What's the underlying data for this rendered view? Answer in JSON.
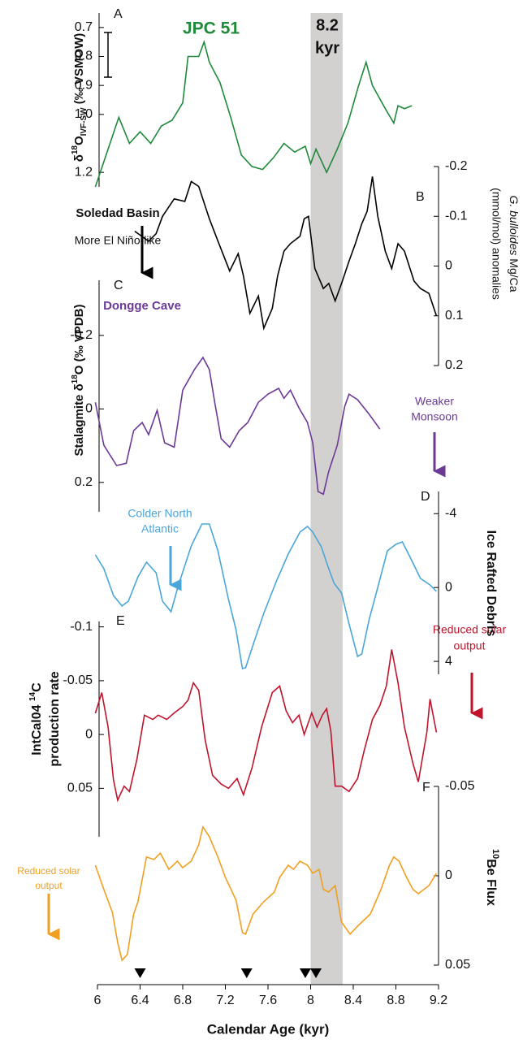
{
  "x_axis": {
    "x_label": "Calendar Age (kyr)",
    "xlim": [
      6,
      9.2
    ],
    "xticks": [
      6,
      6.4,
      6.8,
      7.2,
      7.6,
      8,
      8.4,
      8.8,
      9.2
    ],
    "band": {
      "xlim": [
        8.0,
        8.3
      ],
      "label": [
        "8.2",
        "kyr"
      ]
    }
  },
  "chart_data": [
    {
      "type": "line",
      "panel": "A",
      "title": "JPC 51",
      "y_label": [
        "δ",
        "18",
        "O",
        "IVF-SW",
        " (‰ VSMOW)"
      ],
      "y_axis_side": "left",
      "y_reversed": true,
      "ylim": [
        0.65,
        1.25
      ],
      "yticks": [
        0.7,
        0.8,
        0.9,
        {
          "value": 1.0,
          "label": "1.0"
        },
        1.2
      ],
      "color": "#1f8a3a",
      "x": [
        5.98,
        6.2,
        6.3,
        6.4,
        6.5,
        6.6,
        6.7,
        6.8,
        6.85,
        6.95,
        7.0,
        7.05,
        7.15,
        7.25,
        7.35,
        7.45,
        7.55,
        7.65,
        7.75,
        7.85,
        7.95,
        8.0,
        8.05,
        8.15,
        8.25,
        8.35,
        8.45,
        8.52,
        8.58,
        8.7,
        8.78,
        8.82,
        8.88,
        8.95
      ],
      "values": [
        1.25,
        1.01,
        1.1,
        1.06,
        1.1,
        1.04,
        1.02,
        0.96,
        0.8,
        0.8,
        0.75,
        0.82,
        0.89,
        1.01,
        1.14,
        1.18,
        1.19,
        1.15,
        1.1,
        1.13,
        1.11,
        1.17,
        1.12,
        1.2,
        1.12,
        1.03,
        0.9,
        0.82,
        0.9,
        0.98,
        1.03,
        0.97,
        0.98,
        0.97
      ]
    },
    {
      "type": "line",
      "panel": "B",
      "title": "Soledad Basin",
      "annotation": "More El Niño-like",
      "y_label": [
        "G. bulloides",
        " Mg/Ca",
        "(mmol/mol) anomalies"
      ],
      "y_axis_side": "right",
      "y_reversed": true,
      "ylim": [
        -0.2,
        0.2
      ],
      "yticks": [
        -0.2,
        -0.1,
        0,
        0.1,
        0.2
      ],
      "color": "#000000",
      "x": [
        6.35,
        6.48,
        6.55,
        6.61,
        6.72,
        6.82,
        6.88,
        6.95,
        7.05,
        7.14,
        7.24,
        7.32,
        7.37,
        7.43,
        7.51,
        7.56,
        7.64,
        7.69,
        7.75,
        7.81,
        7.9,
        7.94,
        7.98,
        8.04,
        8.12,
        8.17,
        8.23,
        8.29,
        8.36,
        8.42,
        8.48,
        8.53,
        8.58,
        8.63,
        8.7,
        8.76,
        8.82,
        8.88,
        8.97,
        9.03,
        9.11,
        9.18
      ],
      "values": [
        -0.07,
        -0.05,
        -0.065,
        -0.1,
        -0.135,
        -0.13,
        -0.17,
        -0.16,
        -0.095,
        -0.045,
        0.01,
        -0.025,
        0.02,
        0.095,
        0.06,
        0.125,
        0.085,
        0.02,
        -0.03,
        -0.045,
        -0.06,
        -0.095,
        -0.1,
        0.005,
        0.045,
        0.035,
        0.07,
        0.035,
        -0.01,
        -0.045,
        -0.085,
        -0.11,
        -0.18,
        -0.1,
        -0.03,
        0.005,
        -0.045,
        -0.03,
        0.03,
        0.045,
        0.055,
        0.1
      ]
    },
    {
      "type": "line",
      "panel": "C",
      "title": "Dongge Cave",
      "annotation": [
        "Weaker",
        "Monsoon"
      ],
      "y_label": [
        "Stalagmite δ",
        "18",
        "O (‰ VPDB)"
      ],
      "y_axis_side": "left",
      "y_reversed": true,
      "ylim": [
        -0.35,
        0.28
      ],
      "yticks": [
        -0.2,
        0,
        0.2
      ],
      "color": "#6b3a96",
      "x": [
        5.98,
        6.06,
        6.18,
        6.27,
        6.34,
        6.42,
        6.48,
        6.56,
        6.63,
        6.72,
        6.8,
        6.91,
        6.99,
        7.05,
        7.1,
        7.16,
        7.24,
        7.33,
        7.41,
        7.51,
        7.6,
        7.7,
        7.75,
        7.81,
        7.89,
        7.97,
        8.02,
        8.07,
        8.12,
        8.17,
        8.25,
        8.32,
        8.36,
        8.44,
        8.55,
        8.65
      ],
      "values": [
        -0.018,
        0.099,
        0.154,
        0.148,
        0.059,
        0.037,
        0.07,
        0.004,
        0.092,
        0.104,
        -0.051,
        -0.107,
        -0.14,
        -0.107,
        -0.018,
        0.081,
        0.104,
        0.059,
        0.037,
        -0.018,
        -0.04,
        -0.056,
        -0.029,
        -0.051,
        -0.003,
        0.037,
        0.092,
        0.225,
        0.232,
        0.17,
        0.099,
        -0.007,
        -0.04,
        -0.025,
        0.015,
        0.055
      ]
    },
    {
      "type": "line",
      "panel": "D",
      "annotation": [
        "Colder North",
        "Atlantic"
      ],
      "y_label": [
        "Ice Rafted Debris"
      ],
      "y_axis_side": "right",
      "y_reversed": true,
      "ylim": [
        -5.2,
        4.7
      ],
      "yticks": [
        -4,
        0,
        4
      ],
      "color": "#4aa6d8",
      "x": [
        5.98,
        6.06,
        6.15,
        6.23,
        6.29,
        6.38,
        6.46,
        6.55,
        6.61,
        6.69,
        6.76,
        6.88,
        6.98,
        7.05,
        7.13,
        7.23,
        7.3,
        7.36,
        7.39,
        7.47,
        7.56,
        7.68,
        7.79,
        7.9,
        7.97,
        8.02,
        8.1,
        8.17,
        8.22,
        8.29,
        8.36,
        8.44,
        8.48,
        8.55,
        8.64,
        8.72,
        8.8,
        8.86,
        8.93,
        9.03,
        9.12,
        9.18
      ],
      "values": [
        -1.77,
        -1.02,
        0.43,
        1.0,
        0.74,
        -0.58,
        -1.37,
        -0.8,
        0.74,
        1.31,
        -0.14,
        -2.25,
        -3.44,
        -3.44,
        -1.99,
        0.65,
        2.28,
        4.39,
        4.35,
        2.94,
        1.4,
        -0.36,
        -1.81,
        -3.0,
        -3.31,
        -3.0,
        -2.21,
        -1.02,
        -0.23,
        0.3,
        1.97,
        3.73,
        3.6,
        1.71,
        -0.23,
        -1.99,
        -2.34,
        -2.47,
        -1.68,
        -0.49,
        -0.14,
        0.21
      ]
    },
    {
      "type": "line",
      "panel": "E",
      "annotation": [
        "Reduced solar",
        "output"
      ],
      "y_label": [
        "IntCal04 ",
        "14",
        "C",
        "production rate"
      ],
      "y_axis_side": "left",
      "y_reversed": true,
      "ylim": [
        -0.105,
        0.095
      ],
      "yticks": [
        -0.1,
        -0.05,
        0,
        0.05
      ],
      "color": "#c0142c",
      "x": [
        5.98,
        6.04,
        6.1,
        6.15,
        6.19,
        6.25,
        6.3,
        6.37,
        6.44,
        6.52,
        6.57,
        6.65,
        6.72,
        6.8,
        6.85,
        6.9,
        6.95,
        7.01,
        7.08,
        7.16,
        7.23,
        7.31,
        7.37,
        7.45,
        7.54,
        7.64,
        7.71,
        7.77,
        7.83,
        7.89,
        7.94,
        8.01,
        8.06,
        8.11,
        8.15,
        8.19,
        8.23,
        8.29,
        8.36,
        8.44,
        8.5,
        8.58,
        8.65,
        8.71,
        8.76,
        8.82,
        8.88,
        8.96,
        9.01,
        9.09,
        9.12,
        9.18
      ],
      "values": [
        -0.0197,
        -0.039,
        -0.007,
        0.042,
        0.061,
        0.048,
        0.053,
        0.023,
        -0.018,
        -0.014,
        -0.018,
        -0.014,
        -0.02,
        -0.026,
        -0.032,
        -0.048,
        -0.041,
        0.005,
        0.038,
        0.046,
        0.05,
        0.041,
        0.056,
        0.031,
        -0.007,
        -0.039,
        -0.045,
        -0.022,
        -0.011,
        -0.018,
        0.0,
        -0.02,
        -0.007,
        -0.018,
        -0.024,
        -0.003,
        0.048,
        0.048,
        0.053,
        0.041,
        0.016,
        -0.014,
        -0.027,
        -0.045,
        -0.079,
        -0.048,
        -0.007,
        0.027,
        0.044,
        -0.002,
        -0.033,
        -0.002
      ]
    },
    {
      "type": "line",
      "panel": "F",
      "annotation": [
        "Reduced solar",
        "output"
      ],
      "y_label": [
        "10",
        "Be Flux"
      ],
      "y_axis_side": "right",
      "y_reversed": true,
      "ylim": [
        -0.05,
        0.05
      ],
      "yticks": [
        -0.05,
        0,
        0.05
      ],
      "color": "#f0a020",
      "events": [
        6.4,
        7.4,
        7.95,
        8.05
      ],
      "x": [
        5.98,
        6.06,
        6.14,
        6.19,
        6.23,
        6.28,
        6.34,
        6.38,
        6.46,
        6.53,
        6.59,
        6.67,
        6.75,
        6.8,
        6.88,
        6.95,
        6.99,
        7.05,
        7.13,
        7.2,
        7.3,
        7.36,
        7.39,
        7.46,
        7.56,
        7.66,
        7.71,
        7.79,
        7.84,
        7.9,
        7.97,
        8.02,
        8.08,
        8.12,
        8.17,
        8.23,
        8.29,
        8.37,
        8.44,
        8.56,
        8.66,
        8.74,
        8.78,
        8.83,
        8.9,
        8.96,
        9.01,
        9.11,
        9.18
      ],
      "values": [
        -0.0059,
        0.0077,
        0.0205,
        0.0373,
        0.0473,
        0.0441,
        0.0214,
        0.0145,
        -0.0105,
        -0.0091,
        -0.0127,
        -0.0036,
        -0.0082,
        -0.0045,
        -0.0082,
        -0.0173,
        -0.0273,
        -0.0218,
        -0.0105,
        0.0009,
        0.0136,
        0.0318,
        0.0327,
        0.0214,
        0.0145,
        0.0091,
        0.0009,
        -0.0059,
        -0.0036,
        -0.0082,
        -0.0059,
        -0.0014,
        -0.0036,
        0.0077,
        0.0091,
        0.0055,
        0.0259,
        0.0327,
        0.0282,
        0.0214,
        0.0077,
        -0.0059,
        -0.0105,
        -0.0082,
        0.0009,
        0.0077,
        0.01,
        0.0055,
        -0.0014
      ]
    }
  ]
}
